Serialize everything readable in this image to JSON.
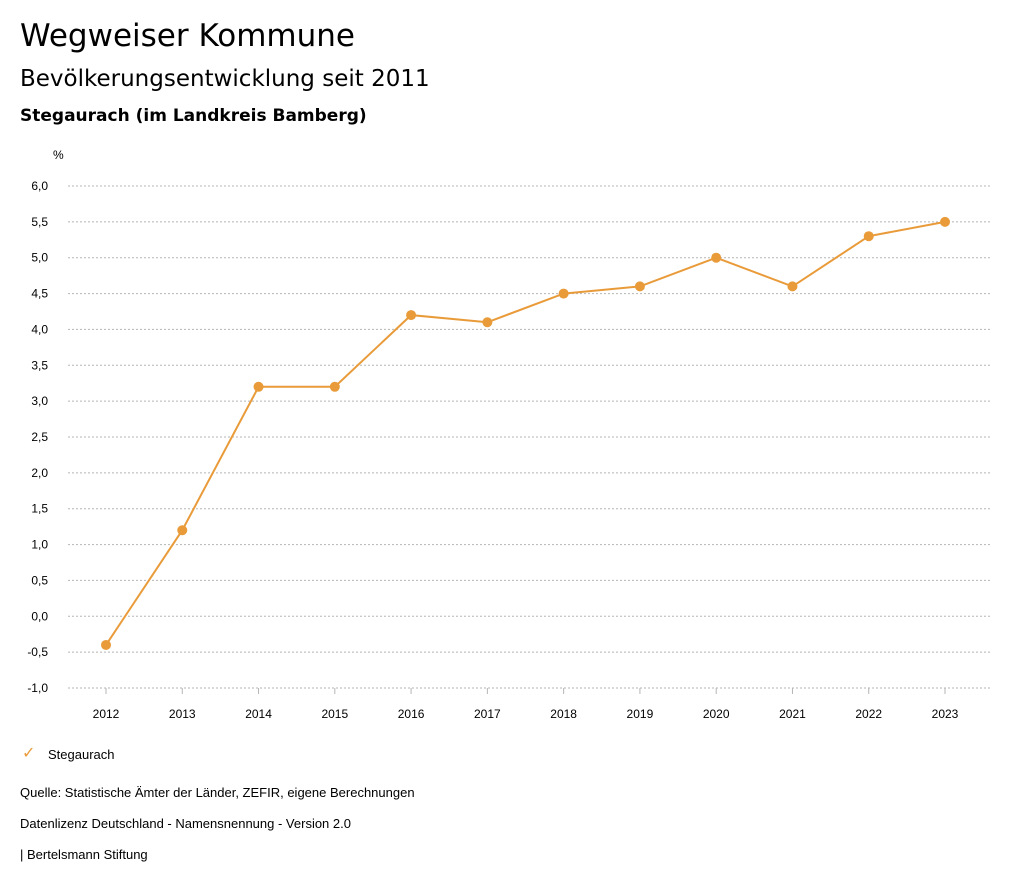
{
  "header": {
    "title": "Wegweiser Kommune",
    "subtitle": "Bevölkerungsentwicklung seit 2011",
    "region": "Stegaurach (im Landkreis Bamberg)"
  },
  "chart_data": {
    "type": "line",
    "title": "",
    "ylabel": "%",
    "xlabel": "",
    "x": [
      "2012",
      "2013",
      "2014",
      "2015",
      "2016",
      "2017",
      "2018",
      "2019",
      "2020",
      "2021",
      "2022",
      "2023"
    ],
    "series": [
      {
        "name": "Stegaurach",
        "color": "#e99b3a",
        "values": [
          -0.4,
          1.2,
          3.2,
          3.2,
          4.2,
          4.1,
          4.5,
          4.6,
          5.0,
          4.6,
          5.3,
          5.5
        ]
      }
    ],
    "ylim": [
      -1.0,
      6.0
    ],
    "yticks": [
      "6,0",
      "5,5",
      "5,0",
      "4,5",
      "4,0",
      "3,5",
      "3,0",
      "2,5",
      "2,0",
      "1,5",
      "1,0",
      "0,5",
      "0,0",
      "-0,5",
      "-1,0"
    ],
    "grid": true,
    "legend": "bottom-left"
  },
  "legend": {
    "label": "Stegaurach",
    "icon": "check-icon"
  },
  "footer": {
    "source": "Quelle: Statistische Ämter der Länder, ZEFIR, eigene Berechnungen",
    "license": "Datenlizenz Deutschland - Namensnennung - Version 2.0",
    "brand": "| Bertelsmann Stiftung"
  }
}
